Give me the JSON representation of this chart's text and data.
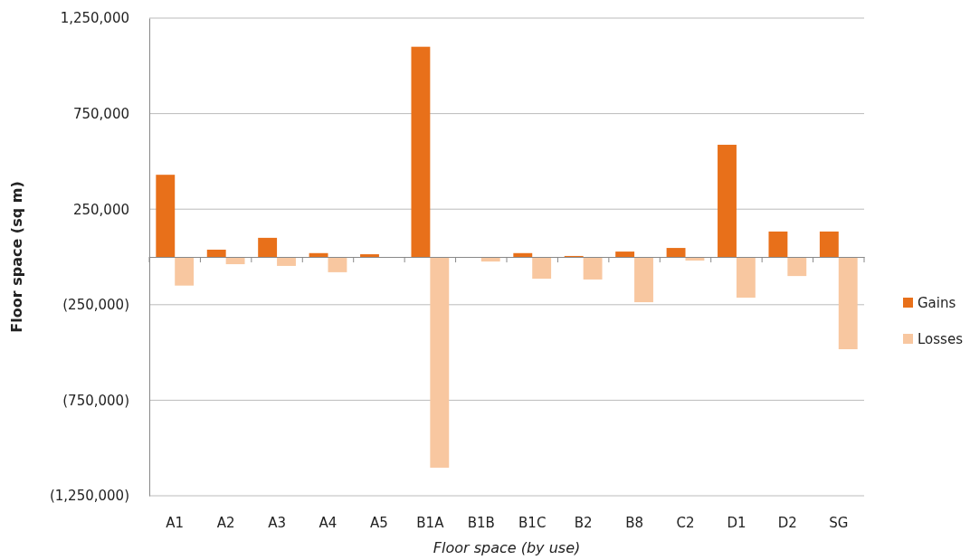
{
  "chart_data": {
    "type": "bar",
    "xlabel": "Floor space (by use)",
    "ylabel": "Floor space (sq m)",
    "categories": [
      "A1",
      "A2",
      "A3",
      "A4",
      "A5",
      "B1A",
      "B1B",
      "B1C",
      "B2",
      "B8",
      "C2",
      "D1",
      "D2",
      "SG"
    ],
    "series": [
      {
        "name": "Gains",
        "color": "#e8701a",
        "values": [
          430000,
          38000,
          100000,
          20000,
          14000,
          1100000,
          null,
          20000,
          5000,
          28000,
          47000,
          587000,
          133000,
          133000
        ]
      },
      {
        "name": "Losses",
        "color": "#f8c7a0",
        "values": [
          -150000,
          -38000,
          -47000,
          -80000,
          null,
          -1103000,
          -24000,
          -114000,
          -118000,
          -237000,
          -19000,
          -213000,
          -100000,
          -483000
        ]
      }
    ],
    "ylim": [
      -1250000,
      1250000
    ],
    "yticks": [
      {
        "value": -1250000,
        "label": "(1,250,000)"
      },
      {
        "value": -750000,
        "label": "(750,000)"
      },
      {
        "value": -250000,
        "label": "(250,000)"
      },
      {
        "value": 250000,
        "label": "250,000"
      },
      {
        "value": 750000,
        "label": "750,000"
      },
      {
        "value": 1250000,
        "label": "1,250,000"
      }
    ],
    "grid": "y",
    "legend": "right"
  }
}
